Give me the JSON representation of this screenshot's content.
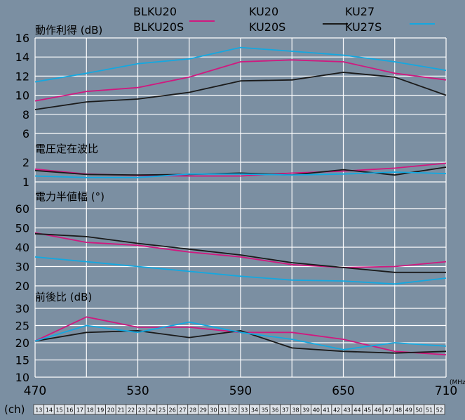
{
  "colors": {
    "background": "#7b8fa2",
    "grid": "#ffffff",
    "KU20": "#d0197f",
    "KU27": "#1a1a1a",
    "KU27S": "#14a8e0",
    "chStrip": "#dfe4ea"
  },
  "chart_data": {
    "type": "line",
    "x": [
      470,
      500,
      530,
      560,
      590,
      620,
      650,
      680,
      710
    ],
    "x_ticks": [
      470,
      530,
      590,
      650,
      710
    ],
    "x_unit": "(MHz)",
    "ch_label": "(ch)",
    "channels": [
      13,
      14,
      15,
      16,
      17,
      18,
      19,
      20,
      21,
      22,
      23,
      24,
      25,
      26,
      27,
      28,
      29,
      30,
      31,
      32,
      33,
      34,
      35,
      36,
      37,
      38,
      39,
      40,
      41,
      42,
      43,
      44,
      45,
      46,
      47,
      48,
      49,
      50,
      51,
      52
    ],
    "legend": [
      {
        "line1": "BLKU20",
        "line2": "BLKU20S",
        "series": "KU20"
      },
      {
        "line1": "KU20",
        "line2": "KU20S",
        "series": "KU27"
      },
      {
        "line1": "KU27",
        "line2": "KU27S",
        "series": "KU27S"
      }
    ],
    "panels": [
      {
        "title": "動作利得 (dB)",
        "ylim": [
          6,
          16
        ],
        "yticks": [
          6,
          8,
          10,
          12,
          14,
          16
        ],
        "series": [
          {
            "key": "KU20",
            "values": [
              9.4,
              10.4,
              10.8,
              11.9,
              13.5,
              13.7,
              13.5,
              12.3,
              11.6
            ]
          },
          {
            "key": "KU27",
            "values": [
              8.5,
              9.3,
              9.6,
              10.3,
              11.5,
              11.6,
              12.4,
              11.9,
              10.0
            ]
          },
          {
            "key": "KU27S",
            "values": [
              11.4,
              12.3,
              13.3,
              13.8,
              15.0,
              14.6,
              14.2,
              13.5,
              12.6
            ]
          }
        ]
      },
      {
        "title": "電圧定在波比",
        "ylim": [
          1,
          2
        ],
        "yticks": [
          1,
          2
        ],
        "series": [
          {
            "key": "KU20",
            "values": [
              1.65,
              1.4,
              1.33,
              1.3,
              1.3,
              1.45,
              1.55,
              1.7,
              1.95
            ]
          },
          {
            "key": "KU27",
            "values": [
              1.58,
              1.38,
              1.35,
              1.38,
              1.45,
              1.35,
              1.62,
              1.35,
              1.75
            ]
          },
          {
            "key": "KU27S",
            "values": [
              1.3,
              1.22,
              1.22,
              1.4,
              1.4,
              1.35,
              1.4,
              1.5,
              1.42
            ]
          }
        ]
      },
      {
        "title": "電力半値幅 (°)",
        "ylim": [
          20,
          60
        ],
        "yticks": [
          20,
          30,
          40,
          50,
          60
        ],
        "series": [
          {
            "key": "KU20",
            "values": [
              47.5,
              42.5,
              41,
              37.5,
              35,
              31,
              29.5,
              30,
              32.5
            ]
          },
          {
            "key": "KU27",
            "values": [
              47,
              45.5,
              42,
              39,
              36,
              32,
              29.5,
              27,
              27
            ]
          },
          {
            "key": "KU27S",
            "values": [
              35,
              32.5,
              30,
              27.5,
              25,
              23,
              22.5,
              21,
              24
            ]
          }
        ]
      },
      {
        "title": "前後比 (dB)",
        "ylim": [
          10,
          30
        ],
        "yticks": [
          10,
          15,
          20,
          25,
          30
        ],
        "series": [
          {
            "key": "KU20",
            "values": [
              20.5,
              27.5,
              24.5,
              24.5,
              23,
              23,
              21,
              17.5,
              16.5
            ]
          },
          {
            "key": "KU27",
            "values": [
              20.5,
              23,
              23.5,
              21.5,
              23.5,
              18.5,
              17.5,
              17,
              17.5
            ]
          },
          {
            "key": "KU27S",
            "values": [
              20.5,
              25,
              23,
              26,
              23,
              21,
              18,
              20,
              19
            ]
          }
        ]
      }
    ]
  }
}
